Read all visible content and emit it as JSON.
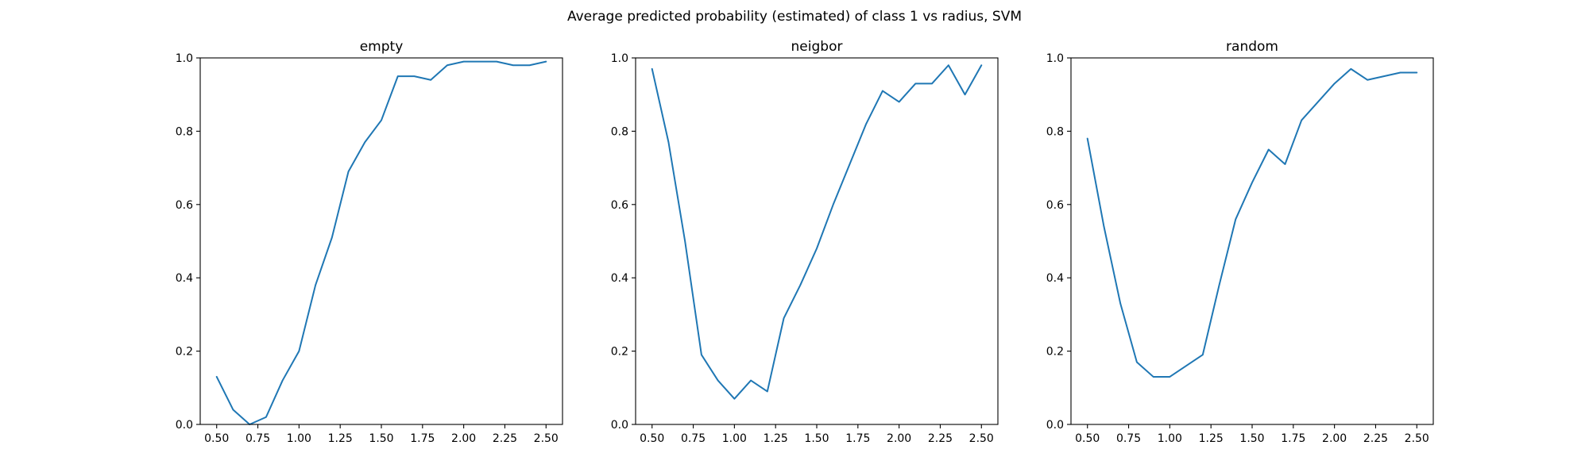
{
  "figure": {
    "title": "Average predicted probability (estimated) of class 1 vs radius, SVM"
  },
  "colors": {
    "series": "#1f77b4",
    "axes": "#000000",
    "background": "#ffffff"
  },
  "chart_data": [
    {
      "type": "line",
      "title": "empty",
      "xlabel": "",
      "ylabel": "",
      "xlim": [
        0.4,
        2.6
      ],
      "ylim": [
        0,
        1
      ],
      "xticks": [
        "0.50",
        "0.75",
        "1.00",
        "1.25",
        "1.50",
        "1.75",
        "2.00",
        "2.25",
        "2.50"
      ],
      "yticks": [
        "0.0",
        "0.2",
        "0.4",
        "0.6",
        "0.8",
        "1.0"
      ],
      "grid": false,
      "x": [
        0.5,
        0.6,
        0.7,
        0.8,
        0.9,
        1.0,
        1.1,
        1.2,
        1.3,
        1.4,
        1.5,
        1.6,
        1.7,
        1.8,
        1.9,
        2.0,
        2.1,
        2.2,
        2.3,
        2.4,
        2.5
      ],
      "series": [
        {
          "values": [
            0.13,
            0.04,
            0.0,
            0.02,
            0.12,
            0.2,
            0.38,
            0.51,
            0.69,
            0.77,
            0.83,
            0.95,
            0.95,
            0.94,
            0.98,
            0.99,
            0.99,
            0.99,
            0.98,
            0.98,
            0.99
          ]
        }
      ]
    },
    {
      "type": "line",
      "title": "neigbor",
      "xlabel": "",
      "ylabel": "",
      "xlim": [
        0.4,
        2.6
      ],
      "ylim": [
        0,
        1
      ],
      "xticks": [
        "0.50",
        "0.75",
        "1.00",
        "1.25",
        "1.50",
        "1.75",
        "2.00",
        "2.25",
        "2.50"
      ],
      "yticks": [
        "0.0",
        "0.2",
        "0.4",
        "0.6",
        "0.8",
        "1.0"
      ],
      "grid": false,
      "x": [
        0.5,
        0.6,
        0.7,
        0.8,
        0.9,
        1.0,
        1.1,
        1.2,
        1.3,
        1.4,
        1.5,
        1.6,
        1.7,
        1.8,
        1.9,
        2.0,
        2.1,
        2.2,
        2.3,
        2.4,
        2.5
      ],
      "series": [
        {
          "values": [
            0.97,
            0.77,
            0.5,
            0.19,
            0.12,
            0.07,
            0.12,
            0.09,
            0.29,
            0.38,
            0.48,
            0.6,
            0.71,
            0.82,
            0.91,
            0.88,
            0.93,
            0.93,
            0.98,
            0.9,
            0.98
          ]
        }
      ]
    },
    {
      "type": "line",
      "title": "random",
      "xlabel": "",
      "ylabel": "",
      "xlim": [
        0.4,
        2.6
      ],
      "ylim": [
        0,
        1
      ],
      "xticks": [
        "0.50",
        "0.75",
        "1.00",
        "1.25",
        "1.50",
        "1.75",
        "2.00",
        "2.25",
        "2.50"
      ],
      "yticks": [
        "0.0",
        "0.2",
        "0.4",
        "0.6",
        "0.8",
        "1.0"
      ],
      "grid": false,
      "x": [
        0.5,
        0.6,
        0.7,
        0.8,
        0.9,
        1.0,
        1.1,
        1.2,
        1.3,
        1.4,
        1.5,
        1.6,
        1.7,
        1.8,
        1.9,
        2.0,
        2.1,
        2.2,
        2.3,
        2.4,
        2.5
      ],
      "series": [
        {
          "values": [
            0.78,
            0.54,
            0.33,
            0.17,
            0.13,
            0.13,
            0.16,
            0.19,
            0.38,
            0.56,
            0.66,
            0.75,
            0.71,
            0.83,
            0.88,
            0.93,
            0.97,
            0.94,
            0.95,
            0.96,
            0.96
          ]
        }
      ]
    }
  ]
}
